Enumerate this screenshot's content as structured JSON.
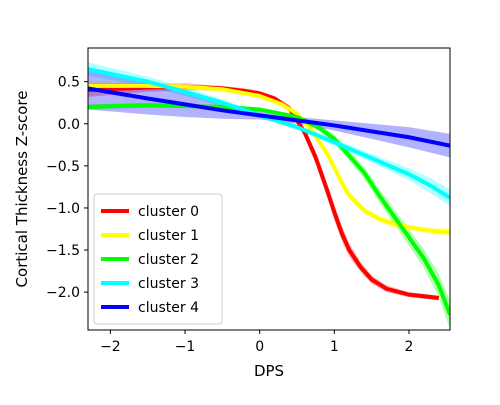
{
  "chart_data": {
    "type": "line",
    "title": "",
    "xlabel": "DPS",
    "ylabel": "Cortical Thickness Z-score",
    "xlim": [
      -2.3,
      2.55
    ],
    "ylim": [
      -2.45,
      0.9
    ],
    "xticks": [
      -2,
      -1,
      0,
      1,
      2
    ],
    "xtick_labels": [
      "−2",
      "−1",
      "0",
      "1",
      "2"
    ],
    "yticks": [
      0.5,
      0.0,
      -0.5,
      -1.0,
      -1.5,
      -2.0
    ],
    "ytick_labels": [
      "0.5",
      "0.0",
      "−0.5",
      "−1.0",
      "−1.5",
      "−2.0"
    ],
    "grid": false,
    "legend_position": "lower-left",
    "series": [
      {
        "name": "cluster 0",
        "color": "#ff0000",
        "x": [
          -2.3,
          -1.5,
          -1.0,
          -0.5,
          -0.2,
          0.0,
          0.2,
          0.4,
          0.6,
          0.75,
          0.9,
          1.0,
          1.1,
          1.2,
          1.35,
          1.5,
          1.7,
          2.0,
          2.3,
          2.4
        ],
        "y": [
          0.4,
          0.43,
          0.44,
          0.42,
          0.39,
          0.36,
          0.3,
          0.18,
          -0.1,
          -0.4,
          -0.78,
          -1.05,
          -1.3,
          -1.5,
          -1.7,
          -1.85,
          -1.96,
          -2.03,
          -2.06,
          -2.07
        ],
        "band": [
          0.08,
          0.05,
          0.04,
          0.03,
          0.03,
          0.03,
          0.03,
          0.04,
          0.05,
          0.07,
          0.08,
          0.09,
          0.09,
          0.08,
          0.06,
          0.05,
          0.04,
          0.03,
          0.03,
          0.03
        ]
      },
      {
        "name": "cluster 1",
        "color": "#ffff00",
        "x": [
          -2.3,
          -1.5,
          -1.0,
          -0.5,
          0.0,
          0.3,
          0.5,
          0.7,
          0.9,
          1.0,
          1.1,
          1.2,
          1.4,
          1.6,
          1.8,
          2.0,
          2.2,
          2.4,
          2.55
        ],
        "y": [
          0.45,
          0.45,
          0.44,
          0.41,
          0.33,
          0.23,
          0.12,
          -0.08,
          -0.35,
          -0.52,
          -0.7,
          -0.85,
          -1.03,
          -1.13,
          -1.19,
          -1.23,
          -1.26,
          -1.28,
          -1.29
        ],
        "band": [
          0.06,
          0.04,
          0.03,
          0.03,
          0.03,
          0.03,
          0.03,
          0.04,
          0.04,
          0.05,
          0.05,
          0.05,
          0.04,
          0.04,
          0.04,
          0.03,
          0.03,
          0.04,
          0.05
        ]
      },
      {
        "name": "cluster 2",
        "color": "#00ff00",
        "x": [
          -2.3,
          -1.5,
          -1.0,
          -0.5,
          0.0,
          0.5,
          0.8,
          1.0,
          1.2,
          1.4,
          1.6,
          1.8,
          2.0,
          2.2,
          2.4,
          2.55
        ],
        "y": [
          0.2,
          0.22,
          0.21,
          0.2,
          0.17,
          0.08,
          -0.05,
          -0.18,
          -0.38,
          -0.58,
          -0.85,
          -1.1,
          -1.35,
          -1.6,
          -1.92,
          -2.27
        ],
        "band": [
          0.03,
          0.03,
          0.02,
          0.02,
          0.02,
          0.03,
          0.04,
          0.05,
          0.06,
          0.07,
          0.08,
          0.09,
          0.1,
          0.11,
          0.14,
          0.17
        ]
      },
      {
        "name": "cluster 3",
        "color": "#00ffff",
        "x": [
          -2.3,
          -1.5,
          -1.0,
          -0.5,
          0.0,
          0.5,
          1.0,
          1.5,
          2.0,
          2.3,
          2.55
        ],
        "y": [
          0.65,
          0.5,
          0.38,
          0.25,
          0.1,
          -0.04,
          -0.22,
          -0.41,
          -0.6,
          -0.74,
          -0.88
        ],
        "band": [
          0.08,
          0.06,
          0.05,
          0.04,
          0.03,
          0.03,
          0.04,
          0.05,
          0.07,
          0.09,
          0.1
        ]
      },
      {
        "name": "cluster 4",
        "color": "#0000ff",
        "x": [
          -2.3,
          -1.5,
          -1.0,
          -0.5,
          0.0,
          0.5,
          1.0,
          1.5,
          2.0,
          2.55
        ],
        "y": [
          0.42,
          0.3,
          0.23,
          0.16,
          0.1,
          0.04,
          -0.02,
          -0.09,
          -0.16,
          -0.26
        ],
        "band": [
          0.25,
          0.19,
          0.15,
          0.1,
          0.05,
          0.04,
          0.06,
          0.09,
          0.12,
          0.14
        ]
      }
    ]
  }
}
